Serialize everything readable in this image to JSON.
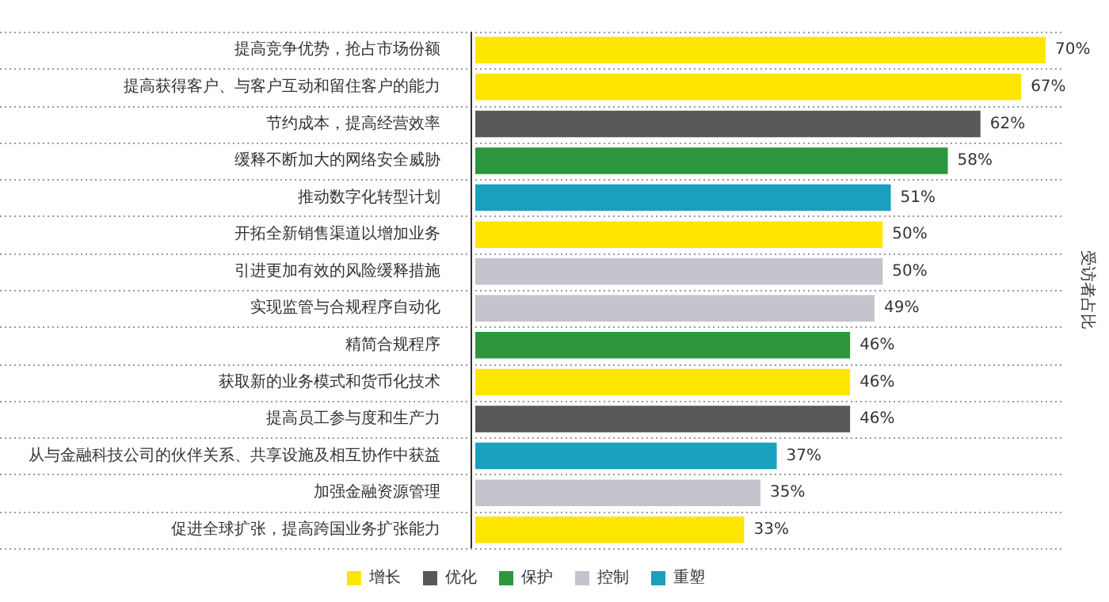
{
  "chart_data": {
    "type": "bar",
    "orientation": "horizontal",
    "stacked": true,
    "categories": [
      "提高竞争优势，抢占市场份额",
      "提高获得客户、与客户互动和留住客户的能力",
      "节约成本，提高经营效率",
      "缓释不断加大的网络安全威胁",
      "推动数字化转型计划",
      "开拓全新销售渠道以增加业务",
      "引进更加有效的风险缓释措施",
      "实现监管与合规程序自动化",
      "精简合规程序",
      "获取新的业务模式和货币化技术",
      "提高员工参与度和生产力",
      "从与金融科技公司的伙伴关系、共享设施及相互协作中获益",
      "加强金融资源管理",
      "促进全球扩张，提高跨国业务扩张能力"
    ],
    "series": [
      {
        "name": "增长",
        "color": "#ffe600",
        "values": [
          70,
          67,
          null,
          null,
          null,
          50,
          null,
          null,
          null,
          46,
          null,
          null,
          null,
          33
        ],
        "value_labels": [
          "70%",
          "67%",
          null,
          null,
          null,
          "50%",
          null,
          null,
          null,
          "46%",
          null,
          null,
          null,
          "33%"
        ]
      },
      {
        "name": "优化",
        "color": "#58585a",
        "values": [
          null,
          null,
          62,
          null,
          null,
          null,
          null,
          null,
          null,
          null,
          46,
          null,
          null,
          null
        ],
        "value_labels": [
          null,
          null,
          "62%",
          null,
          null,
          null,
          null,
          null,
          null,
          null,
          "46%",
          null,
          null,
          null
        ]
      },
      {
        "name": "保护",
        "color": "#2c973e",
        "values": [
          null,
          null,
          null,
          58,
          null,
          null,
          null,
          null,
          46,
          null,
          null,
          null,
          null,
          null
        ],
        "value_labels": [
          null,
          null,
          null,
          "58%",
          null,
          null,
          null,
          null,
          "46%",
          null,
          null,
          null,
          null,
          null
        ]
      },
      {
        "name": "控制",
        "color": "#c4c4cd",
        "values": [
          null,
          null,
          null,
          null,
          null,
          null,
          50,
          49,
          null,
          null,
          null,
          null,
          35,
          null
        ],
        "value_labels": [
          null,
          null,
          null,
          null,
          null,
          null,
          "50%",
          "49%",
          null,
          null,
          null,
          null,
          "35%",
          null
        ]
      },
      {
        "name": "重塑",
        "color": "#1a9fbf",
        "values": [
          null,
          null,
          null,
          null,
          51,
          null,
          null,
          null,
          null,
          null,
          null,
          37,
          null,
          null
        ],
        "value_labels": [
          null,
          null,
          null,
          null,
          "51%",
          null,
          null,
          null,
          null,
          null,
          null,
          "37%",
          null,
          null
        ]
      }
    ],
    "annotations": [
      "受访者占比"
    ],
    "grid": "y",
    "legend": "bottom",
    "tick_labels": "y"
  }
}
